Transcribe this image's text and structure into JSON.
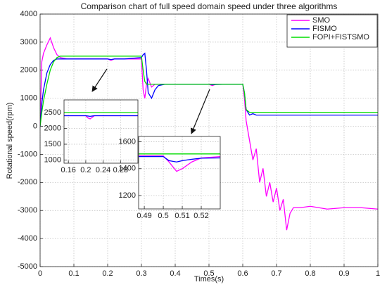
{
  "chart_data": [
    {
      "type": "line",
      "title": "Comparison chart of full speed domain speed under three algorithms",
      "x_label": "Times(s)",
      "y_label": "Rotational speed(rpm)",
      "x": [
        0,
        0.005,
        0.01,
        0.02,
        0.03,
        0.04,
        0.05,
        0.06,
        0.08,
        0.1,
        0.15,
        0.2,
        0.21,
        0.22,
        0.25,
        0.3,
        0.305,
        0.31,
        0.315,
        0.32,
        0.33,
        0.34,
        0.35,
        0.37,
        0.4,
        0.45,
        0.5,
        0.51,
        0.52,
        0.55,
        0.6,
        0.605,
        0.61,
        0.62,
        0.63,
        0.64,
        0.65,
        0.66,
        0.67,
        0.68,
        0.69,
        0.7,
        0.71,
        0.72,
        0.73,
        0.74,
        0.75,
        0.77,
        0.8,
        0.85,
        0.9,
        0.95,
        1.0
      ],
      "series": [
        {
          "name": "SMO",
          "color": "#ff00ff",
          "values": [
            0,
            2300,
            2600,
            2900,
            3150,
            2800,
            2550,
            2450,
            2400,
            2400,
            2400,
            2400,
            2350,
            2400,
            2400,
            2400,
            1300,
            1000,
            1500,
            1700,
            1400,
            1500,
            1500,
            1500,
            1500,
            1500,
            1500,
            1450,
            1500,
            1500,
            1500,
            1000,
            200,
            -500,
            -1200,
            -800,
            -2000,
            -1500,
            -2500,
            -2000,
            -2700,
            -2200,
            -3000,
            -2600,
            -3700,
            -3100,
            -2900,
            -2900,
            -2850,
            -2950,
            -2900,
            -2900,
            -2950
          ]
        },
        {
          "name": "FISMO",
          "color": "#0000ff",
          "values": [
            0,
            800,
            1300,
            1900,
            2200,
            2350,
            2400,
            2400,
            2400,
            2400,
            2400,
            2400,
            2380,
            2400,
            2400,
            2450,
            2550,
            2600,
            2000,
            1200,
            1000,
            1300,
            1450,
            1500,
            1500,
            1500,
            1500,
            1480,
            1490,
            1500,
            1500,
            1200,
            600,
            400,
            450,
            400,
            400,
            400,
            400,
            400,
            400,
            400,
            400,
            400,
            400,
            400,
            400,
            400,
            400,
            400,
            400,
            400,
            400
          ]
        },
        {
          "name": "FOPI+FISTSMO",
          "color": "#00dd00",
          "values": [
            0,
            500,
            900,
            1500,
            2000,
            2300,
            2450,
            2500,
            2500,
            2500,
            2500,
            2500,
            2500,
            2500,
            2500,
            2500,
            2000,
            1600,
            1500,
            1500,
            1500,
            1500,
            1500,
            1500,
            1500,
            1500,
            1500,
            1500,
            1500,
            1500,
            1500,
            1200,
            600,
            500,
            500,
            500,
            500,
            500,
            500,
            500,
            500,
            500,
            500,
            500,
            500,
            500,
            500,
            500,
            500,
            500,
            500,
            500,
            500
          ]
        }
      ],
      "xlim": [
        0,
        1
      ],
      "xticks": [
        0,
        0.1,
        0.2,
        0.3,
        0.4,
        0.5,
        0.6,
        0.7,
        0.8,
        0.9,
        1
      ],
      "ylim": [
        -5000,
        4000
      ],
      "yticks": [
        -5000,
        -4000,
        -3000,
        -2000,
        -1000,
        0,
        1000,
        2000,
        3000,
        4000
      ],
      "grid": true,
      "legend": "upper right"
    },
    {
      "type": "line",
      "x": [
        0.15,
        0.18,
        0.2,
        0.205,
        0.21,
        0.215,
        0.22,
        0.25,
        0.28,
        0.32
      ],
      "series": [
        {
          "color": "#ff00ff",
          "values": [
            2400,
            2400,
            2400,
            2330,
            2300,
            2350,
            2400,
            2400,
            2400,
            2400
          ]
        },
        {
          "color": "#0000ff",
          "values": [
            2400,
            2400,
            2400,
            2390,
            2380,
            2390,
            2400,
            2400,
            2400,
            2400
          ]
        },
        {
          "color": "#00dd00",
          "values": [
            2500,
            2500,
            2500,
            2500,
            2500,
            2500,
            2500,
            2500,
            2500,
            2500
          ]
        }
      ],
      "xlim": [
        0.15,
        0.32
      ],
      "xticks": [
        0.16,
        0.2,
        0.24,
        0.28
      ],
      "ylim": [
        900,
        2900
      ],
      "yticks": [
        2500,
        2000,
        1500,
        1000
      ],
      "grid": true
    },
    {
      "type": "line",
      "x": [
        0.487,
        0.5,
        0.503,
        0.507,
        0.51,
        0.515,
        0.52,
        0.53
      ],
      "series": [
        {
          "color": "#ff00ff",
          "values": [
            1495,
            1495,
            1450,
            1380,
            1400,
            1450,
            1480,
            1490
          ]
        },
        {
          "color": "#0000ff",
          "values": [
            1490,
            1490,
            1460,
            1450,
            1460,
            1470,
            1478,
            1480
          ]
        },
        {
          "color": "#00dd00",
          "values": [
            1510,
            1510,
            1510,
            1510,
            1510,
            1510,
            1510,
            1510
          ]
        }
      ],
      "xlim": [
        0.487,
        0.53
      ],
      "xticks": [
        0.49,
        0.5,
        0.51,
        0.52
      ],
      "ylim": [
        1100,
        1640
      ],
      "yticks": [
        1600,
        1400,
        1200
      ],
      "grid": true
    }
  ]
}
